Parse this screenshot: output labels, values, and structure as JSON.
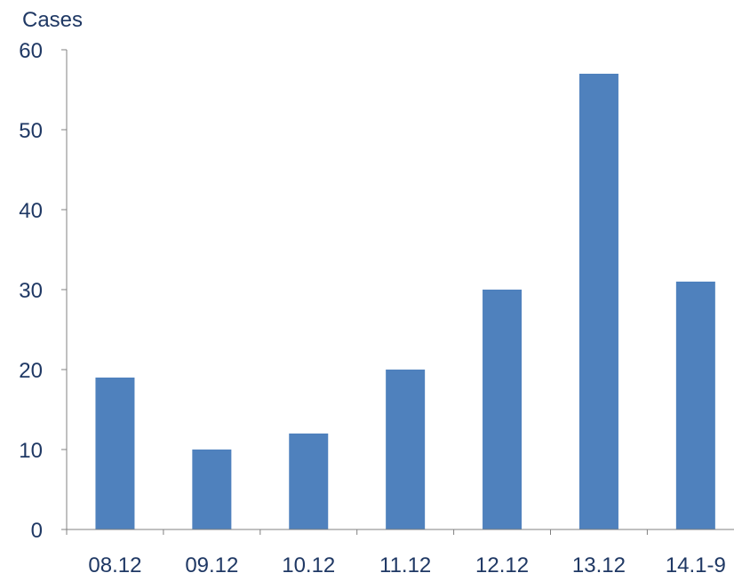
{
  "chart_data": {
    "type": "bar",
    "title": "",
    "xlabel": "",
    "ylabel": "Cases",
    "categories": [
      "08.12",
      "09.12",
      "10.12",
      "11.12",
      "12.12",
      "13.12",
      "14.1-9"
    ],
    "values": [
      19,
      10,
      12,
      20,
      30,
      57,
      31
    ],
    "ylim": [
      0,
      60
    ],
    "yticks": [
      "0",
      "10",
      "20",
      "30",
      "40",
      "50",
      "60"
    ],
    "grid": false,
    "legend": "none",
    "colors": {
      "bar": "#4f81bd",
      "text": "#1f3864",
      "axis": "#808080"
    }
  }
}
